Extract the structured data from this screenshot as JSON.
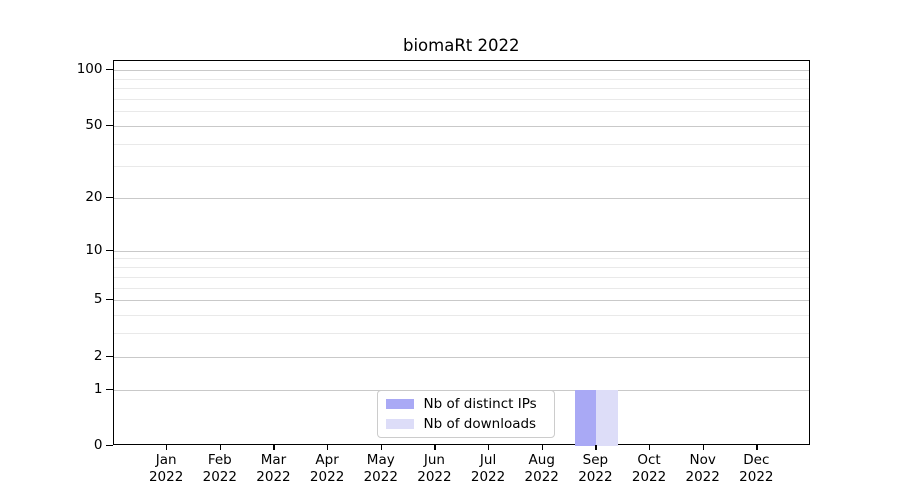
{
  "chart_data": {
    "type": "bar",
    "title": "biomaRt 2022",
    "x_categories": [
      {
        "month": "Jan",
        "year": "2022"
      },
      {
        "month": "Feb",
        "year": "2022"
      },
      {
        "month": "Mar",
        "year": "2022"
      },
      {
        "month": "Apr",
        "year": "2022"
      },
      {
        "month": "May",
        "year": "2022"
      },
      {
        "month": "Jun",
        "year": "2022"
      },
      {
        "month": "Jul",
        "year": "2022"
      },
      {
        "month": "Aug",
        "year": "2022"
      },
      {
        "month": "Sep",
        "year": "2022"
      },
      {
        "month": "Oct",
        "year": "2022"
      },
      {
        "month": "Nov",
        "year": "2022"
      },
      {
        "month": "Dec",
        "year": "2022"
      }
    ],
    "series": [
      {
        "name": "Nb of distinct IPs",
        "color": "#a9a9f5",
        "values": [
          0,
          0,
          0,
          0,
          0,
          0,
          0,
          0,
          1,
          0,
          0,
          0
        ]
      },
      {
        "name": "Nb of downloads",
        "color": "#ddddf8",
        "values": [
          0,
          0,
          0,
          0,
          0,
          0,
          0,
          0,
          1,
          0,
          0,
          0
        ]
      }
    ],
    "y_axis": {
      "scale": "log1p",
      "tick_values": [
        0,
        1,
        2,
        5,
        10,
        20,
        50,
        100
      ],
      "minor_gridline_values": [
        3,
        4,
        6,
        7,
        8,
        9,
        30,
        40,
        60,
        70,
        80,
        90
      ],
      "range_top_value": 112
    },
    "grid": "horizontal",
    "legend_position": "lower-center-inside",
    "colors": {
      "major_grid": "#c9c9c9",
      "minor_grid": "#e9e9e9",
      "axis": "#000000",
      "background": "#ffffff"
    }
  }
}
